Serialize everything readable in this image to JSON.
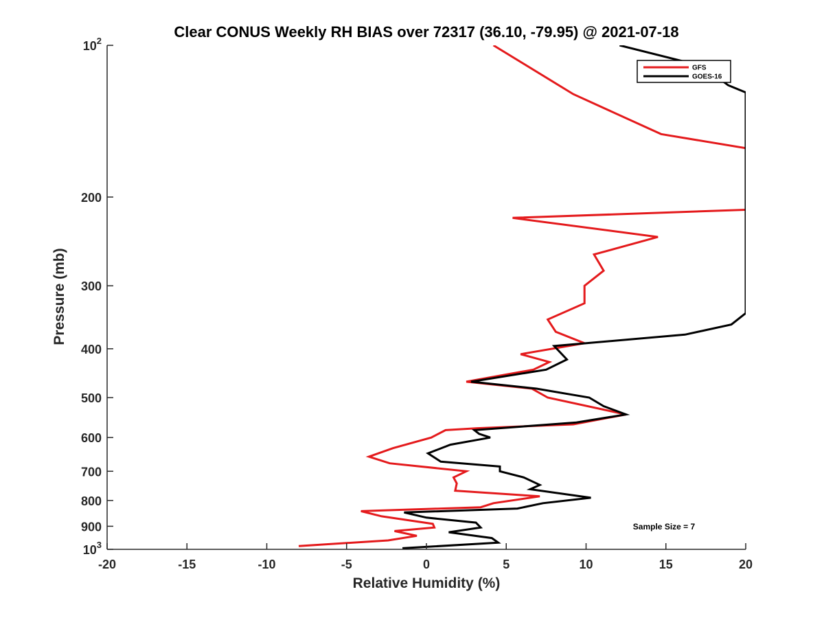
{
  "chart_data": {
    "type": "line",
    "title": "Clear CONUS Weekly RH BIAS over 72317 (36.10, -79.95) @ 2021-07-18",
    "xlabel": "Relative Humidity (%)",
    "ylabel": "Pressure (mb)",
    "xlim": [
      -20,
      20
    ],
    "ylim": [
      100,
      1000
    ],
    "y_scale": "log",
    "y_reversed": true,
    "grid": false,
    "legend_position": "top-right",
    "x_ticks": [
      -20,
      -15,
      -10,
      -5,
      0,
      5,
      10,
      15,
      20
    ],
    "y_ticks": [
      {
        "value": 100,
        "label": "10",
        "sup": "2"
      },
      {
        "value": 200,
        "label": "200",
        "sup": ""
      },
      {
        "value": 300,
        "label": "300",
        "sup": ""
      },
      {
        "value": 400,
        "label": "400",
        "sup": ""
      },
      {
        "value": 500,
        "label": "500",
        "sup": ""
      },
      {
        "value": 600,
        "label": "600",
        "sup": ""
      },
      {
        "value": 700,
        "label": "700",
        "sup": ""
      },
      {
        "value": 800,
        "label": "800",
        "sup": ""
      },
      {
        "value": 900,
        "label": "900",
        "sup": ""
      },
      {
        "value": 1000,
        "label": "10",
        "sup": "3"
      }
    ],
    "annotation": "Sample Size = 7",
    "series": [
      {
        "name": "GFS",
        "color": "#e41a1c",
        "points": [
          [
            4.2,
            100
          ],
          [
            9.2,
            125
          ],
          [
            14.7,
            150
          ],
          [
            20,
            160
          ],
          [
            20,
            212
          ],
          [
            5.4,
            220
          ],
          [
            14.5,
            240
          ],
          [
            10.5,
            260
          ],
          [
            11.1,
            280
          ],
          [
            9.9,
            300
          ],
          [
            9.9,
            325
          ],
          [
            7.6,
            350
          ],
          [
            8.1,
            370
          ],
          [
            9.9,
            390
          ],
          [
            5.9,
            410
          ],
          [
            7.7,
            425
          ],
          [
            6.7,
            440
          ],
          [
            2.5,
            465
          ],
          [
            6.6,
            480
          ],
          [
            7.6,
            500
          ],
          [
            12.5,
            540
          ],
          [
            9.2,
            565
          ],
          [
            3.2,
            575
          ],
          [
            1.2,
            580
          ],
          [
            0.3,
            600
          ],
          [
            -2.1,
            630
          ],
          [
            -3.6,
            655
          ],
          [
            -2.3,
            675
          ],
          [
            2.5,
            700
          ],
          [
            1.7,
            720
          ],
          [
            1.9,
            740
          ],
          [
            1.8,
            765
          ],
          [
            7.1,
            785
          ],
          [
            4.2,
            810
          ],
          [
            3.4,
            825
          ],
          [
            -4.1,
            840
          ],
          [
            -2.8,
            860
          ],
          [
            0.4,
            890
          ],
          [
            0.5,
            905
          ],
          [
            -2.0,
            920
          ],
          [
            -0.6,
            940
          ],
          [
            -2.4,
            960
          ],
          [
            -8.0,
            985
          ]
        ]
      },
      {
        "name": "GOES-16",
        "color": "#000000",
        "points": [
          [
            12.1,
            100
          ],
          [
            17.3,
            110
          ],
          [
            18.9,
            120
          ],
          [
            20,
            124
          ],
          [
            20,
            340
          ],
          [
            19.1,
            358
          ],
          [
            16.2,
            375
          ],
          [
            8.0,
            395
          ],
          [
            8.8,
            420
          ],
          [
            7.5,
            440
          ],
          [
            2.8,
            465
          ],
          [
            6.9,
            480
          ],
          [
            10.2,
            500
          ],
          [
            11.1,
            520
          ],
          [
            12.5,
            540
          ],
          [
            9.4,
            560
          ],
          [
            3.0,
            580
          ],
          [
            3.3,
            590
          ],
          [
            4.0,
            600
          ],
          [
            1.5,
            620
          ],
          [
            0.1,
            645
          ],
          [
            0.9,
            670
          ],
          [
            4.6,
            685
          ],
          [
            4.6,
            700
          ],
          [
            6.1,
            720
          ],
          [
            7.1,
            745
          ],
          [
            6.5,
            760
          ],
          [
            10.3,
            790
          ],
          [
            7.3,
            810
          ],
          [
            5.7,
            830
          ],
          [
            -1.4,
            845
          ],
          [
            0.0,
            865
          ],
          [
            3.1,
            885
          ],
          [
            3.4,
            905
          ],
          [
            1.4,
            925
          ],
          [
            4.1,
            950
          ],
          [
            4.5,
            970
          ],
          [
            -1.5,
            995
          ]
        ]
      }
    ]
  }
}
